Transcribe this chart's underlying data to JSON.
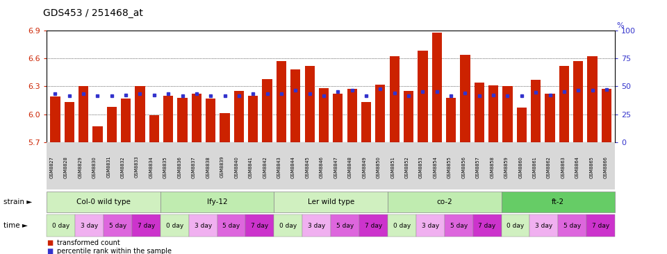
{
  "title": "GDS453 / 251468_at",
  "samples": [
    "GSM8827",
    "GSM8828",
    "GSM8829",
    "GSM8830",
    "GSM8831",
    "GSM8832",
    "GSM8833",
    "GSM8834",
    "GSM8835",
    "GSM8836",
    "GSM8837",
    "GSM8838",
    "GSM8839",
    "GSM8840",
    "GSM8841",
    "GSM8842",
    "GSM8843",
    "GSM8844",
    "GSM8845",
    "GSM8846",
    "GSM8847",
    "GSM8848",
    "GSM8849",
    "GSM8850",
    "GSM8851",
    "GSM8852",
    "GSM8853",
    "GSM8854",
    "GSM8855",
    "GSM8856",
    "GSM8857",
    "GSM8858",
    "GSM8859",
    "GSM8860",
    "GSM8861",
    "GSM8862",
    "GSM8863",
    "GSM8864",
    "GSM8865",
    "GSM8866"
  ],
  "bar_values": [
    6.19,
    6.13,
    6.3,
    5.87,
    6.08,
    6.17,
    6.3,
    5.99,
    6.2,
    6.18,
    6.22,
    6.17,
    6.01,
    6.25,
    6.2,
    6.38,
    6.57,
    6.48,
    6.52,
    6.28,
    6.22,
    6.27,
    6.13,
    6.32,
    6.62,
    6.25,
    6.68,
    6.88,
    6.18,
    6.64,
    6.34,
    6.31,
    6.3,
    6.07,
    6.37,
    6.22,
    6.52,
    6.57,
    6.62,
    6.27
  ],
  "blue_values": [
    6.225,
    6.2,
    6.225,
    6.2,
    6.2,
    6.21,
    6.225,
    6.21,
    6.225,
    6.2,
    6.225,
    6.2,
    6.2,
    6.2,
    6.225,
    6.225,
    6.225,
    6.255,
    6.225,
    6.2,
    6.24,
    6.255,
    6.2,
    6.27,
    6.23,
    6.2,
    6.24,
    6.245,
    6.2,
    6.23,
    6.2,
    6.21,
    6.2,
    6.2,
    6.235,
    6.21,
    6.245,
    6.255,
    6.255,
    6.265
  ],
  "ymin": 5.7,
  "ymax": 6.9,
  "yticks_left": [
    5.7,
    6.0,
    6.3,
    6.6,
    6.9
  ],
  "yticks_right": [
    0,
    25,
    50,
    75,
    100
  ],
  "bar_color": "#CC2200",
  "blue_color": "#3333CC",
  "gridlines": [
    6.0,
    6.3,
    6.6
  ],
  "strains": [
    {
      "name": "Col-0 wild type",
      "start": 0,
      "end": 8
    },
    {
      "name": "lfy-12",
      "start": 8,
      "end": 16
    },
    {
      "name": "Ler wild type",
      "start": 16,
      "end": 24
    },
    {
      "name": "co-2",
      "start": 24,
      "end": 32
    },
    {
      "name": "ft-2",
      "start": 32,
      "end": 40
    }
  ],
  "strain_colors": [
    "#d0f0c0",
    "#c0ecb0",
    "#d0f0c0",
    "#c0ecb0",
    "#66cc66"
  ],
  "time_labels": [
    "0 day",
    "3 day",
    "5 day",
    "7 day"
  ],
  "time_colors": [
    "#d0f0c0",
    "#f0b0f0",
    "#dd66dd",
    "#cc33cc"
  ],
  "bar_color_legend": "#CC2200",
  "blue_color_legend": "#3333CC",
  "legend_red": "transformed count",
  "legend_blue": "percentile rank within the sample",
  "xlabel_bg": "#d0d0d0"
}
